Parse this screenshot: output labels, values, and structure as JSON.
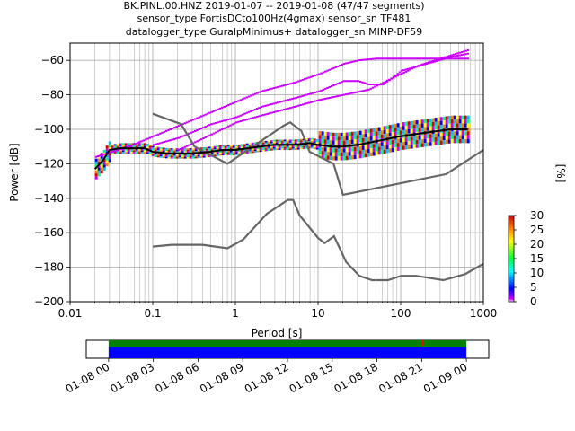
{
  "title_lines": [
    "BK.PINL.00.HNZ   2019-01-07 -- 2019-01-08  (47/47 segments)",
    "sensor_type FortisDCto100Hz(4gmax) sensor_sn TF481",
    "datalogger_type GuralpMinimus+ datalogger_sn MINP-DF59"
  ],
  "chart_data": [
    {
      "type": "heatmap",
      "name": "ppsd",
      "xlabel": "Period [s]",
      "ylabel": "Power [dB]",
      "x_scale": "log",
      "xlim": [
        0.01,
        1000
      ],
      "ylim": [
        -200,
        -50
      ],
      "x_ticks": [
        0.01,
        0.1,
        1,
        10,
        100,
        1000
      ],
      "x_tick_labels": [
        "0.01",
        "0.1",
        "1",
        "10",
        "100",
        "1000"
      ],
      "y_ticks": [
        -200,
        -180,
        -160,
        -140,
        -120,
        -100,
        -80,
        -60
      ],
      "y_tick_labels": [
        "−200",
        "−180",
        "−160",
        "−140",
        "−120",
        "−100",
        "−80",
        "−60"
      ],
      "grid": true,
      "mean_curve": {
        "period": [
          0.02,
          0.025,
          0.03,
          0.04,
          0.06,
          0.08,
          0.1,
          0.15,
          0.2,
          0.3,
          0.5,
          0.7,
          1,
          2,
          3,
          5,
          8,
          10,
          15,
          20,
          30,
          50,
          100,
          200,
          400,
          650
        ],
        "power": [
          -123,
          -118,
          -112,
          -111,
          -111,
          -111,
          -113,
          -114,
          -114,
          -114,
          -113,
          -112,
          -112,
          -110,
          -109,
          -109,
          -108,
          -109,
          -110,
          -110,
          -109,
          -107,
          -104,
          -102,
          -100,
          -100
        ]
      },
      "high_branch": {
        "period": [
          0.02,
          0.05,
          0.1,
          0.2,
          0.5,
          1,
          2,
          5,
          10,
          20,
          30,
          50,
          100,
          200,
          400,
          650
        ],
        "power": [
          -116,
          -110,
          -104,
          -98,
          -90,
          -84,
          -78,
          -73,
          -68,
          -62,
          -60,
          -59,
          -59,
          -59,
          -59,
          -59
        ]
      },
      "high_branch2": {
        "period": [
          0.1,
          0.2,
          0.5,
          1,
          2,
          5,
          10,
          20,
          30,
          40,
          60,
          100,
          200,
          400,
          650
        ],
        "power": [
          -109,
          -105,
          -97,
          -93,
          -87,
          -82,
          -78,
          -72,
          -72,
          -74,
          -74,
          -66,
          -62,
          -58,
          -56
        ]
      },
      "high_branch3": {
        "period": [
          0.2,
          0.5,
          1,
          2,
          5,
          10,
          20,
          40,
          80,
          160,
          400,
          650
        ],
        "power": [
          -112,
          -103,
          -96,
          -92,
          -87,
          -83,
          -80,
          -77,
          -70,
          -63,
          -57,
          -54
        ]
      },
      "nhnm": {
        "period": [
          0.1,
          0.22,
          0.32,
          0.8,
          3.8,
          4.6,
          6.3,
          7.9,
          15.4,
          20,
          354.8,
          1000
        ],
        "power": [
          -91,
          -97,
          -110,
          -120,
          -98,
          -96,
          -101,
          -113,
          -120,
          -138,
          -126,
          -112
        ]
      },
      "nlnm": {
        "period": [
          0.1,
          0.17,
          0.4,
          0.8,
          1.24,
          2.4,
          4.3,
          5,
          6,
          10,
          12,
          15.6,
          21.9,
          31.6,
          45,
          70,
          101,
          154,
          328,
          600,
          1000
        ],
        "power": [
          -168,
          -167,
          -167,
          -169,
          -164,
          -149,
          -141,
          -141,
          -150,
          -163,
          -166,
          -162,
          -177,
          -185,
          -187.5,
          -187.5,
          -185,
          -185,
          -187.5,
          -184,
          -178
        ]
      }
    },
    {
      "type": "colorbar",
      "label": "[%]",
      "range": [
        0,
        30
      ],
      "ticks": [
        "0",
        "5",
        "10",
        "15",
        "20",
        "25",
        "30"
      ]
    },
    {
      "type": "timeline",
      "tick_labels": [
        "01-08 00",
        "01-08 03",
        "01-08 06",
        "01-08 09",
        "01-08 12",
        "01-08 15",
        "01-08 18",
        "01-08 21",
        "01-09 00"
      ],
      "xlim_hours": [
        -1.5,
        25.5
      ],
      "coverage_start_hour": 0,
      "coverage_end_hour": 24,
      "gap_marker_hour": 21
    }
  ],
  "colors": {
    "mean": "#000000",
    "model": "#666666",
    "grid": "#b0b0b0",
    "low_density": "#cc00ff",
    "timeline_top": "#008000",
    "timeline_bottom": "#0000ff",
    "gap": "#ff0000"
  }
}
